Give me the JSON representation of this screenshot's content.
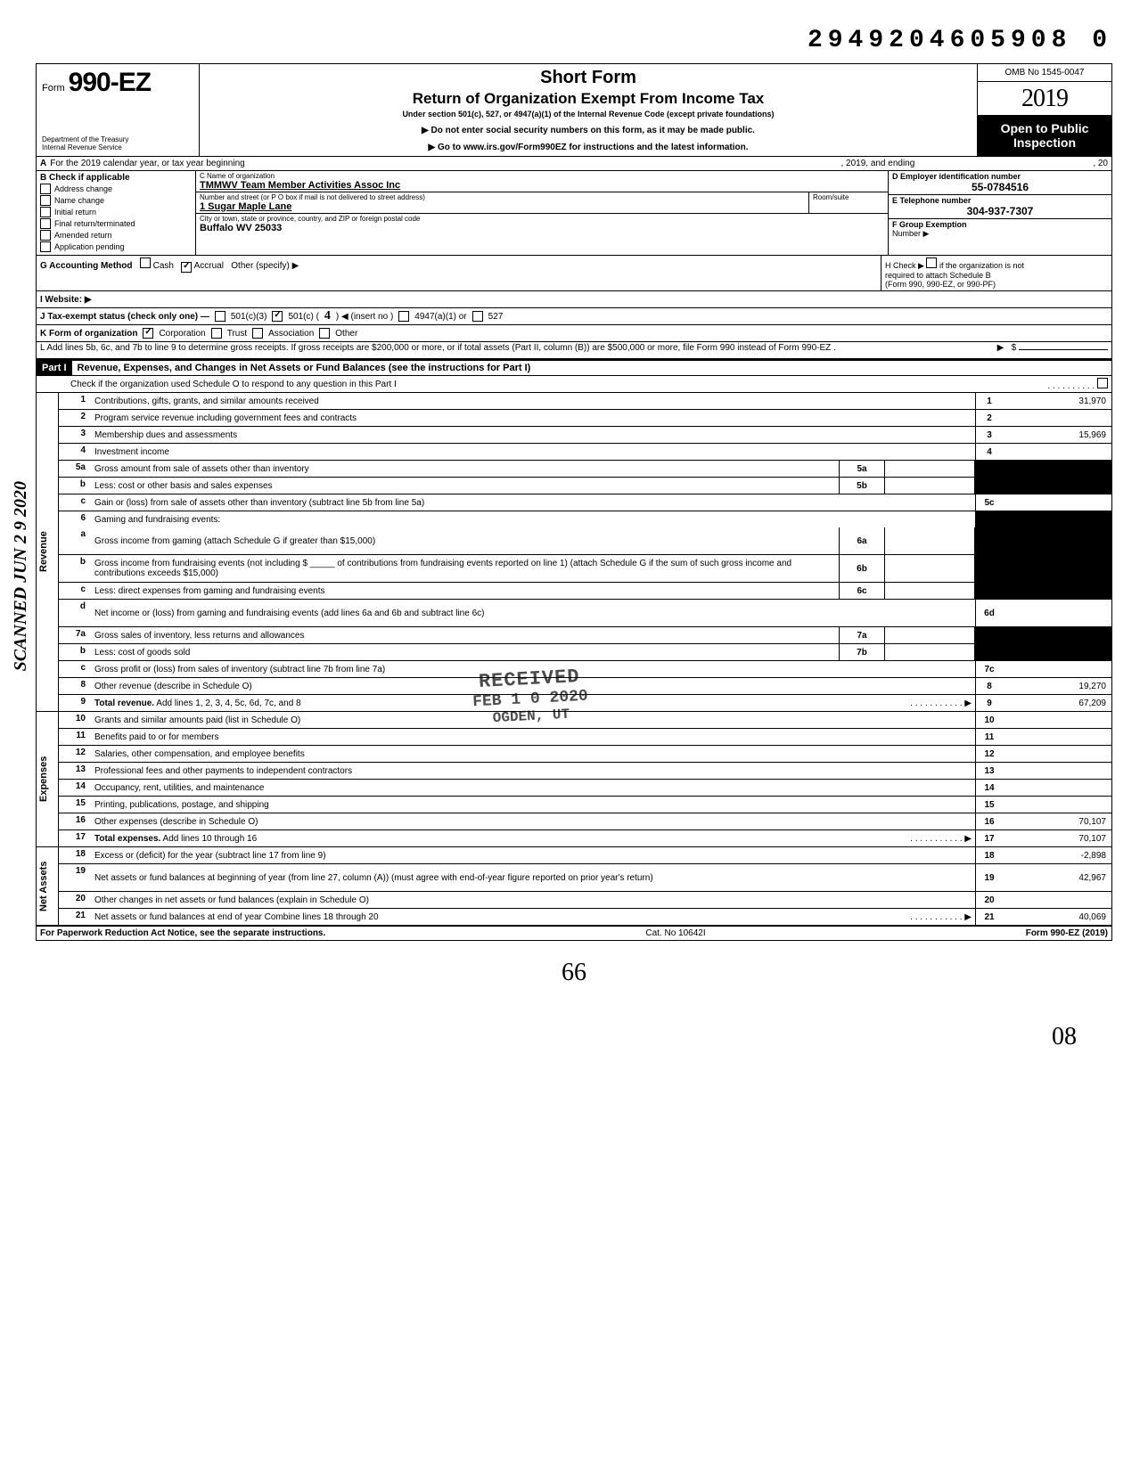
{
  "document_id": "2949204605908 0",
  "scanned_stamp": "SCANNED JUN 2 9 2020",
  "header": {
    "form_word": "Form",
    "form_number": "990-EZ",
    "title1": "Short Form",
    "title2": "Return of Organization Exempt From Income Tax",
    "subtitle": "Under section 501(c), 527, or 4947(a)(1) of the Internal Revenue Code (except private foundations)",
    "arrow1": "▶ Do not enter social security numbers on this form, as it may be made public.",
    "arrow2": "▶ Go to www.irs.gov/Form990EZ for instructions and the latest information.",
    "dept1": "Department of the Treasury",
    "dept2": "Internal Revenue Service",
    "omb": "OMB No 1545-0047",
    "year": "2019",
    "open_public_1": "Open to Public",
    "open_public_2": "Inspection"
  },
  "row_a": {
    "label": "A",
    "text1": "For the 2019 calendar year, or tax year beginning",
    "text2": ", 2019, and ending",
    "text3": ", 20"
  },
  "section_b": {
    "header": "B Check if applicable",
    "items": [
      {
        "checked": false,
        "label": "Address change"
      },
      {
        "checked": false,
        "label": "Name change"
      },
      {
        "checked": false,
        "label": "Initial return"
      },
      {
        "checked": false,
        "label": "Final return/terminated"
      },
      {
        "checked": false,
        "label": "Amended return"
      },
      {
        "checked": false,
        "label": "Application pending"
      }
    ]
  },
  "section_c": {
    "name_lbl": "C Name of organization",
    "name_val": "TMMWV Team Member Activities Assoc Inc",
    "street_lbl": "Number and street (or P O  box if mail is not delivered to street address)",
    "room_lbl": "Room/suite",
    "street_val": "1 Sugar Maple Lane",
    "city_lbl": "City or town, state or province, country, and ZIP or foreign postal code",
    "city_val": "Buffalo WV 25033"
  },
  "section_d": {
    "ein_lbl": "D Employer identification number",
    "ein_val": "55-0784516",
    "phone_lbl": "E Telephone number",
    "phone_val": "304-937-7307",
    "group_lbl": "F Group Exemption",
    "group_lbl2": "Number ▶"
  },
  "line_g": {
    "label": "G Accounting Method",
    "opt1": "Cash",
    "opt2": "Accrual",
    "opt3": "Other (specify) ▶",
    "checked": 2
  },
  "line_h": {
    "text1": "H Check ▶",
    "text2": "if the organization is not",
    "text3": "required to attach Schedule B",
    "text4": "(Form 990, 990-EZ, or 990-PF)"
  },
  "line_i": {
    "label": "I  Website: ▶"
  },
  "line_j": {
    "label": "J Tax-exempt status (check only one) —",
    "opts": [
      "501(c)(3)",
      "501(c) (",
      ")  ◀ (insert no )",
      "4947(a)(1) or",
      "527"
    ],
    "checked_idx": 1,
    "insert": "4"
  },
  "line_k": {
    "label": "K Form of organization",
    "opts": [
      "Corporation",
      "Trust",
      "Association",
      "Other"
    ],
    "checked_idx": 0
  },
  "line_l": {
    "text": "L  Add lines 5b, 6c, and 7b to line 9 to determine gross receipts. If gross receipts are $200,000 or more, or if total assets (Part II, column (B)) are $500,000 or more, file Form 990 instead of Form 990-EZ .",
    "arrow": "▶",
    "amount_prefix": "$"
  },
  "part1": {
    "label": "Part I",
    "title": "Revenue, Expenses, and Changes in Net Assets or Fund Balances (see the instructions for Part I)",
    "check_line": "Check if the organization used Schedule O to respond to any question in this Part I"
  },
  "sections": {
    "revenue": "Revenue",
    "expenses": "Expenses",
    "net_assets": "Net Assets"
  },
  "lines": [
    {
      "num": "1",
      "desc": "Contributions, gifts, grants, and similar amounts received",
      "rnum": "1",
      "rval": "31,970"
    },
    {
      "num": "2",
      "desc": "Program service revenue including government fees and contracts",
      "rnum": "2",
      "rval": ""
    },
    {
      "num": "3",
      "desc": "Membership dues and assessments",
      "rnum": "3",
      "rval": "15,969"
    },
    {
      "num": "4",
      "desc": "Investment income",
      "rnum": "4",
      "rval": ""
    },
    {
      "num": "5a",
      "desc": "Gross amount from sale of assets other than inventory",
      "sub": "5a",
      "subval": "",
      "shade_r": true
    },
    {
      "num": "b",
      "desc": "Less: cost or other basis and sales expenses",
      "sub": "5b",
      "subval": "",
      "shade_r": true
    },
    {
      "num": "c",
      "desc": "Gain or (loss) from sale of assets other than inventory (subtract line 5b from line 5a)",
      "rnum": "5c",
      "rval": ""
    },
    {
      "num": "6",
      "desc": "Gaming and fundraising events:",
      "shade_r": true,
      "noborder": true
    },
    {
      "num": "a",
      "desc": "Gross income from gaming (attach Schedule G if greater than $15,000)",
      "sub": "6a",
      "subval": "",
      "shade_r": true,
      "tall": true
    },
    {
      "num": "b",
      "desc": "Gross income from fundraising events (not including $ _____ of contributions from fundraising events reported on line 1) (attach Schedule G if the sum of such gross income and contributions exceeds $15,000)",
      "sub": "6b",
      "subval": "",
      "shade_r": true,
      "tall": true
    },
    {
      "num": "c",
      "desc": "Less: direct expenses from gaming and fundraising events",
      "sub": "6c",
      "subval": "",
      "shade_r": true
    },
    {
      "num": "d",
      "desc": "Net income or (loss) from gaming and fundraising events (add lines 6a and 6b and subtract line 6c)",
      "rnum": "6d",
      "rval": "",
      "tall": true
    },
    {
      "num": "7a",
      "desc": "Gross sales of inventory, less returns and allowances",
      "sub": "7a",
      "subval": "",
      "shade_r": true
    },
    {
      "num": "b",
      "desc": "Less: cost of goods sold",
      "sub": "7b",
      "subval": "",
      "shade_r": true
    },
    {
      "num": "c",
      "desc": "Gross profit or (loss) from sales of inventory (subtract line 7b from line 7a)",
      "rnum": "7c",
      "rval": ""
    },
    {
      "num": "8",
      "desc": "Other revenue (describe in Schedule O)",
      "rnum": "8",
      "rval": "19,270"
    },
    {
      "num": "9",
      "desc": "Total revenue. Add lines 1, 2, 3, 4, 5c, 6d, 7c, and 8",
      "rnum": "9",
      "rval": "67,209",
      "bold": true,
      "arrow": true
    }
  ],
  "exp_lines": [
    {
      "num": "10",
      "desc": "Grants and similar amounts paid (list in Schedule O)",
      "rnum": "10",
      "rval": ""
    },
    {
      "num": "11",
      "desc": "Benefits paid to or for members",
      "rnum": "11",
      "rval": ""
    },
    {
      "num": "12",
      "desc": "Salaries, other compensation, and employee benefits",
      "rnum": "12",
      "rval": ""
    },
    {
      "num": "13",
      "desc": "Professional fees and other payments to independent contractors",
      "rnum": "13",
      "rval": ""
    },
    {
      "num": "14",
      "desc": "Occupancy, rent, utilities, and maintenance",
      "rnum": "14",
      "rval": ""
    },
    {
      "num": "15",
      "desc": "Printing, publications, postage, and shipping",
      "rnum": "15",
      "rval": ""
    },
    {
      "num": "16",
      "desc": "Other expenses (describe in Schedule O)",
      "rnum": "16",
      "rval": "70,107"
    },
    {
      "num": "17",
      "desc": "Total expenses. Add lines 10 through 16",
      "rnum": "17",
      "rval": "70,107",
      "bold": true,
      "arrow": true
    }
  ],
  "net_lines": [
    {
      "num": "18",
      "desc": "Excess or (deficit) for the year (subtract line 17 from line 9)",
      "rnum": "18",
      "rval": "-2,898"
    },
    {
      "num": "19",
      "desc": "Net assets or fund balances at beginning of year (from line 27, column (A)) (must agree with end-of-year figure reported on prior year's return)",
      "rnum": "19",
      "rval": "42,967",
      "tall": true
    },
    {
      "num": "20",
      "desc": "Other changes in net assets or fund balances (explain in Schedule O)",
      "rnum": "20",
      "rval": ""
    },
    {
      "num": "21",
      "desc": "Net assets or fund balances at end of year  Combine lines 18 through 20",
      "rnum": "21",
      "rval": "40,069",
      "arrow": true
    }
  ],
  "footer": {
    "left": "For Paperwork Reduction Act Notice, see the separate instructions.",
    "mid": "Cat. No 10642I",
    "right": "Form 990-EZ (2019)"
  },
  "received_stamp": {
    "line1": "RECEIVED",
    "line2": "FEB 1 0 2020",
    "line3": "OGDEN, UT"
  },
  "hand_66": "66",
  "hand_08": "08",
  "colors": {
    "black": "#000000",
    "white": "#ffffff"
  }
}
